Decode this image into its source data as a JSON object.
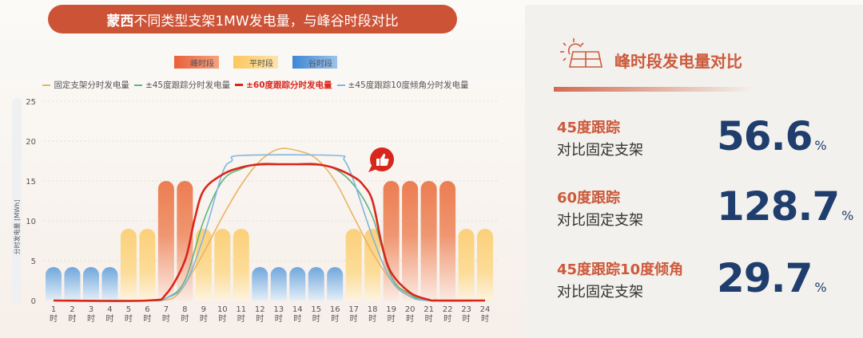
{
  "title": {
    "bold": "蒙西",
    "rest": "不同类型支架1MW发电量，与峰谷时段对比"
  },
  "period_legend": [
    {
      "label": "峰时段",
      "color": "#ee7a4f"
    },
    {
      "label": "平时段",
      "color": "#fbd27e"
    },
    {
      "label": "谷时段",
      "color": "#6ea5dc"
    }
  ],
  "chart_data": {
    "type": "bar+line",
    "ylabel": "分时发电量 [MWh]",
    "ylim": [
      0,
      25
    ],
    "yticks": [
      0,
      5,
      10,
      15,
      20,
      25
    ],
    "grid": true,
    "categories": [
      "1时",
      "2时",
      "3时",
      "4时",
      "5时",
      "6时",
      "7时",
      "8时",
      "9时",
      "10时",
      "11时",
      "12时",
      "13时",
      "14时",
      "15时",
      "16时",
      "17时",
      "18时",
      "19时",
      "20时",
      "21时",
      "22时",
      "23时",
      "24时"
    ],
    "bars": {
      "periods": [
        "谷",
        "谷",
        "谷",
        "谷",
        "平",
        "平",
        "峰",
        "峰",
        "平",
        "平",
        "平",
        "谷",
        "谷",
        "谷",
        "谷",
        "谷",
        "平",
        "平",
        "峰",
        "峰",
        "峰",
        "峰",
        "平",
        "平"
      ],
      "values": [
        4.2,
        4.2,
        4.2,
        4.2,
        9,
        9,
        15,
        15,
        9,
        9,
        9,
        4.2,
        4.2,
        4.2,
        4.2,
        4.2,
        9,
        9,
        15,
        15,
        15,
        15,
        9,
        9
      ]
    },
    "series": [
      {
        "name": "固定支架分时发电量",
        "color": "#eab463",
        "x": [
          1,
          6,
          7,
          7.5,
          8,
          9,
          10,
          11,
          12,
          13,
          14,
          15,
          16,
          17,
          18,
          19,
          20,
          21,
          24
        ],
        "y": [
          0,
          0,
          0.1,
          0.5,
          2,
          6,
          10.5,
          14.5,
          17.5,
          19,
          18.8,
          17.8,
          15,
          10.5,
          6,
          2.5,
          0.6,
          0,
          0
        ]
      },
      {
        "name": "±45度跟踪分时发电量",
        "color": "#5db57e",
        "x": [
          1,
          6,
          7,
          8,
          9,
          10,
          11,
          12,
          15,
          16,
          17,
          18,
          19,
          20,
          21,
          24
        ],
        "y": [
          0,
          0,
          0.3,
          2.5,
          10,
          15,
          16.5,
          17,
          17,
          16.5,
          14.5,
          10.5,
          3,
          0.8,
          0,
          0
        ]
      },
      {
        "name": "±60度跟踪分时发电量",
        "color": "#d9261c",
        "highlight": true,
        "x": [
          1,
          6,
          7,
          8,
          8.5,
          9,
          10,
          11,
          12,
          13,
          14,
          15,
          16,
          17,
          17.5,
          18,
          18.5,
          19,
          20,
          21,
          21.5,
          24
        ],
        "y": [
          0,
          0,
          0.8,
          5,
          10,
          13.8,
          15.8,
          16.7,
          17.1,
          17.1,
          17.1,
          17.1,
          16.6,
          15.5,
          14.5,
          12.5,
          7,
          3.5,
          1,
          0.1,
          0,
          0
        ]
      },
      {
        "name": "±45度跟踪10度倾角分时发电量",
        "color": "#7fb6e0",
        "x": [
          1,
          6,
          7,
          8,
          9,
          10,
          10.5,
          11,
          16,
          16.5,
          17,
          18,
          19,
          20,
          21,
          24
        ],
        "y": [
          0,
          0,
          0.3,
          2,
          8,
          16,
          17.5,
          18.2,
          18.2,
          17.6,
          15,
          8,
          2.5,
          0.5,
          0,
          0
        ]
      }
    ]
  },
  "panel": {
    "title": "峰时段发电量对比",
    "rows": [
      {
        "l1": "45度跟踪",
        "l2": "对比固定支架",
        "value": "56.6",
        "unit": "%"
      },
      {
        "l1": "60度跟踪",
        "l2": "对比固定支架",
        "value": "128.7",
        "unit": "%"
      },
      {
        "l1": "45度跟踪10度倾角",
        "l2": "对比固定支架",
        "value": "29.7",
        "unit": "%"
      }
    ]
  }
}
